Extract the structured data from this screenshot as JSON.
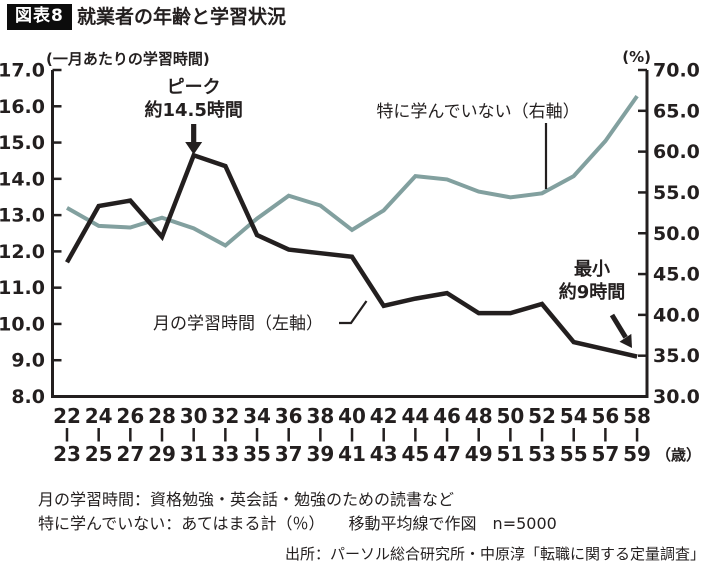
{
  "header": {
    "badge": "図表8",
    "title": "就業者の年齢と学習状況"
  },
  "chart_data": {
    "type": "line",
    "title": "就業者の年齢と学習状況",
    "x_unit": "（歳）",
    "categories_upper": [
      "22",
      "24",
      "26",
      "28",
      "30",
      "32",
      "34",
      "36",
      "38",
      "40",
      "42",
      "44",
      "46",
      "48",
      "50",
      "52",
      "54",
      "56",
      "58"
    ],
    "categories_lower": [
      "23",
      "25",
      "27",
      "29",
      "31",
      "33",
      "35",
      "37",
      "39",
      "41",
      "43",
      "45",
      "47",
      "49",
      "51",
      "53",
      "55",
      "57",
      "59"
    ],
    "left_axis": {
      "title": "(一月あたりの学習時間)",
      "min": 8.0,
      "max": 17.0,
      "step": 1.0
    },
    "right_axis": {
      "title": "(%)",
      "min": 30.0,
      "max": 70.0,
      "step": 5.0
    },
    "grid": false,
    "series": [
      {
        "name": "月の学習時間（左軸）",
        "axis": "left",
        "color": "#231f1f",
        "values": [
          11.7,
          13.25,
          13.4,
          12.4,
          14.65,
          14.35,
          12.45,
          12.05,
          11.95,
          11.85,
          10.5,
          10.7,
          10.85,
          10.3,
          10.3,
          10.55,
          9.5,
          9.3,
          9.1
        ]
      },
      {
        "name": "特に学んでいない（右軸）",
        "axis": "right",
        "color": "#82a09f",
        "values": [
          53.1,
          50.9,
          50.7,
          51.9,
          50.6,
          48.5,
          51.8,
          54.6,
          53.4,
          50.4,
          52.8,
          57.0,
          56.6,
          55.1,
          54.4,
          54.9,
          57.0,
          61.3,
          66.8
        ]
      }
    ],
    "annotations": {
      "peak": {
        "lines": [
          "ピーク",
          "約14.5時間"
        ]
      },
      "min": {
        "lines": [
          "最小",
          "約9時間"
        ]
      },
      "right_series_label": "特に学んでいない（右軸）",
      "left_series_label": "月の学習時間（左軸）"
    }
  },
  "footnotes": {
    "line1": "月の学習時間：資格勉強・英会話・勉強のための読書など",
    "line2": "特に学んでいない：あてはまる計（％）　　移動平均線で作図　n=5000",
    "source": "出所：パーソル総合研究所・中原淳「転職に関する定量調査」"
  }
}
